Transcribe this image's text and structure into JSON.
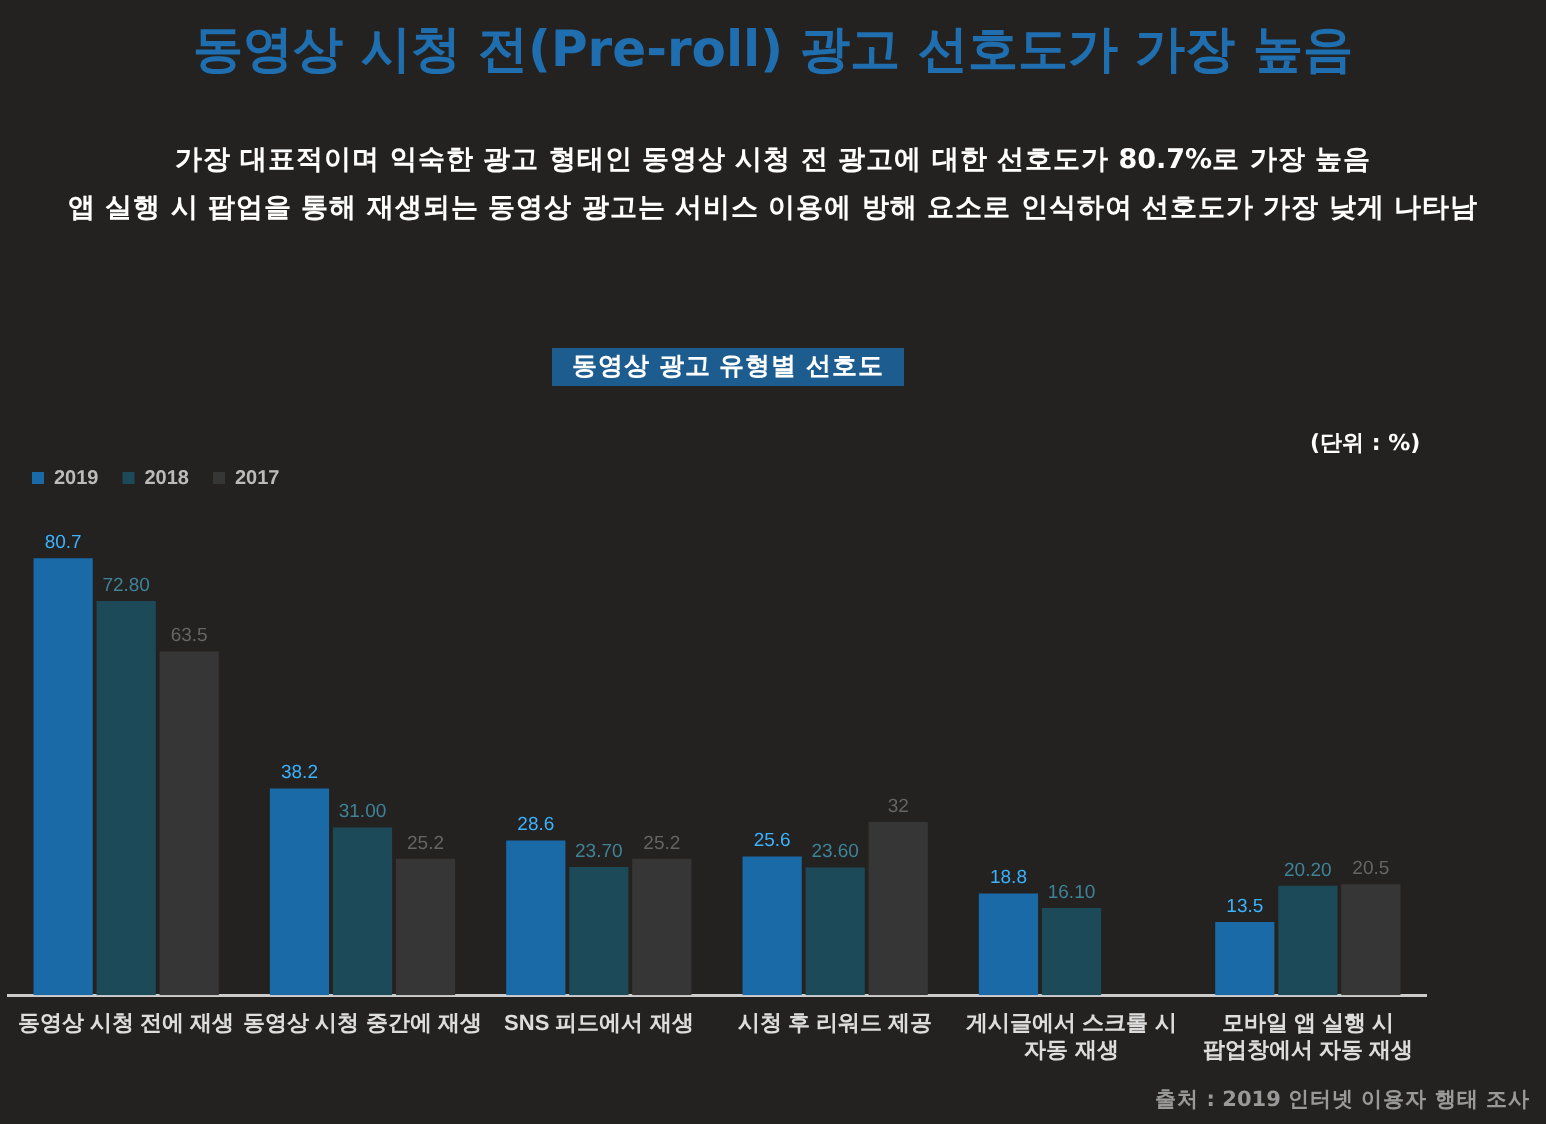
{
  "chart_data": {
    "type": "bar",
    "title": "동영상 시청 전(Pre-roll) 광고 선호도가 가장 높음",
    "subtitle": "가장 대표적이며 익숙한 광고 형태인 동영상 시청 전 광고에 대한 선호도가 80.7%로 가장 높음\n앱 실행 시 팝업을 통해 재생되는 동영상 광고는 서비스 이용에 방해 요소로 인식하여 선호도가 가장 낮게 나타남",
    "annotations": [
      "동영상 광고 유형별 선호도",
      "(단위 : %)",
      "출처 : 2019 인터넷 이용자 행태 조사"
    ],
    "categories": [
      "동영상 시청 전에 재생",
      "동영상 시청 중간에 재생",
      "SNS 피드에서 재생",
      "시청 후 리워드 제공",
      "게시글에서 스크롤 시 자동 재생",
      "모바일 앱 실행 시 팝업창에서 자동 재생"
    ],
    "series": [
      {
        "name": "2019",
        "color": "#1a6aa8",
        "values": [
          80.7,
          38.2,
          28.6,
          25.6,
          18.8,
          13.5
        ],
        "value_labels": [
          "80.7",
          "38.2",
          "28.6",
          "25.6",
          "18.8",
          "13.5"
        ]
      },
      {
        "name": "2018",
        "color": "#1c4a58",
        "values": [
          72.8,
          31.0,
          23.7,
          23.6,
          16.1,
          20.2
        ],
        "value_labels": [
          "72.80",
          "31.00",
          "23.70",
          "23.60",
          "16.10",
          "20.20"
        ]
      },
      {
        "name": "2017",
        "color": "#363636",
        "values": [
          63.5,
          25.2,
          25.2,
          32,
          null,
          20.5
        ],
        "value_labels": [
          "63.5",
          "25.2",
          "25.2",
          "32",
          null,
          "20.5"
        ]
      }
    ],
    "legend": "top left"
  }
}
